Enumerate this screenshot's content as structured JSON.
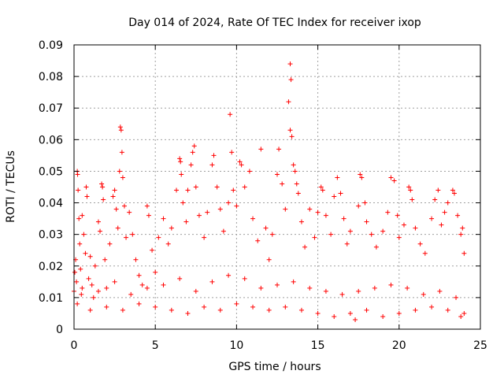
{
  "chart_data": {
    "type": "scatter",
    "title": "Day 014 of 2024, Rate Of TEC Index for receiver ixop",
    "xlabel": "GPS time / hours",
    "ylabel": "ROTI / TECUs",
    "xlim": [
      0,
      25
    ],
    "ylim": [
      0,
      0.09
    ],
    "xticks": [
      0,
      5,
      10,
      15,
      20,
      25
    ],
    "yticks": [
      0,
      0.01,
      0.02,
      0.03,
      0.04,
      0.05,
      0.06,
      0.07,
      0.08,
      0.09
    ],
    "xtick_labels": [
      "0",
      "5",
      "10",
      "15",
      "20",
      "25"
    ],
    "ytick_labels": [
      "0",
      "0.01",
      "0.02",
      "0.03",
      "0.04",
      "0.05",
      "0.06",
      "0.07",
      "0.08",
      "0.09"
    ],
    "grid": true,
    "marker": "+",
    "series_color": "#ff0000",
    "series": [
      {
        "name": "ROTI",
        "points": [
          [
            0.0,
            0.012
          ],
          [
            0.05,
            0.018
          ],
          [
            0.1,
            0.022
          ],
          [
            0.15,
            0.015
          ],
          [
            0.2,
            0.05
          ],
          [
            0.22,
            0.049
          ],
          [
            0.25,
            0.044
          ],
          [
            0.3,
            0.035
          ],
          [
            0.35,
            0.027
          ],
          [
            0.4,
            0.019
          ],
          [
            0.45,
            0.011
          ],
          [
            0.5,
            0.036
          ],
          [
            0.6,
            0.03
          ],
          [
            0.7,
            0.024
          ],
          [
            0.75,
            0.045
          ],
          [
            0.8,
            0.042
          ],
          [
            0.9,
            0.016
          ],
          [
            1.0,
            0.023
          ],
          [
            1.1,
            0.014
          ],
          [
            1.2,
            0.01
          ],
          [
            1.3,
            0.02
          ],
          [
            1.5,
            0.034
          ],
          [
            1.6,
            0.031
          ],
          [
            1.7,
            0.046
          ],
          [
            1.75,
            0.045
          ],
          [
            1.8,
            0.041
          ],
          [
            1.9,
            0.022
          ],
          [
            2.0,
            0.013
          ],
          [
            2.2,
            0.027
          ],
          [
            2.4,
            0.042
          ],
          [
            2.5,
            0.044
          ],
          [
            2.6,
            0.038
          ],
          [
            2.7,
            0.032
          ],
          [
            2.8,
            0.05
          ],
          [
            2.85,
            0.064
          ],
          [
            2.9,
            0.063
          ],
          [
            2.95,
            0.056
          ],
          [
            3.0,
            0.048
          ],
          [
            3.1,
            0.039
          ],
          [
            3.2,
            0.029
          ],
          [
            3.4,
            0.037
          ],
          [
            3.6,
            0.03
          ],
          [
            3.8,
            0.022
          ],
          [
            4.0,
            0.017
          ],
          [
            4.2,
            0.014
          ],
          [
            4.5,
            0.039
          ],
          [
            4.6,
            0.036
          ],
          [
            4.8,
            0.025
          ],
          [
            5.0,
            0.018
          ],
          [
            5.2,
            0.029
          ],
          [
            5.5,
            0.035
          ],
          [
            5.8,
            0.027
          ],
          [
            6.0,
            0.032
          ],
          [
            6.3,
            0.044
          ],
          [
            6.5,
            0.054
          ],
          [
            6.55,
            0.053
          ],
          [
            6.6,
            0.049
          ],
          [
            6.7,
            0.04
          ],
          [
            6.9,
            0.034
          ],
          [
            7.0,
            0.044
          ],
          [
            7.2,
            0.052
          ],
          [
            7.3,
            0.056
          ],
          [
            7.4,
            0.058
          ],
          [
            7.5,
            0.045
          ],
          [
            7.7,
            0.036
          ],
          [
            8.0,
            0.029
          ],
          [
            8.2,
            0.037
          ],
          [
            8.5,
            0.052
          ],
          [
            8.6,
            0.055
          ],
          [
            8.8,
            0.045
          ],
          [
            9.0,
            0.038
          ],
          [
            9.2,
            0.031
          ],
          [
            9.5,
            0.04
          ],
          [
            9.6,
            0.068
          ],
          [
            9.7,
            0.056
          ],
          [
            9.8,
            0.044
          ],
          [
            10.0,
            0.039
          ],
          [
            10.2,
            0.053
          ],
          [
            10.3,
            0.052
          ],
          [
            10.5,
            0.045
          ],
          [
            10.8,
            0.05
          ],
          [
            11.0,
            0.035
          ],
          [
            11.3,
            0.028
          ],
          [
            11.5,
            0.057
          ],
          [
            11.8,
            0.032
          ],
          [
            12.0,
            0.022
          ],
          [
            12.2,
            0.03
          ],
          [
            12.5,
            0.049
          ],
          [
            12.6,
            0.057
          ],
          [
            12.8,
            0.046
          ],
          [
            13.0,
            0.038
          ],
          [
            13.3,
            0.084
          ],
          [
            13.35,
            0.079
          ],
          [
            13.2,
            0.072
          ],
          [
            13.3,
            0.063
          ],
          [
            13.4,
            0.061
          ],
          [
            13.5,
            0.052
          ],
          [
            13.6,
            0.05
          ],
          [
            13.7,
            0.046
          ],
          [
            13.8,
            0.043
          ],
          [
            14.0,
            0.034
          ],
          [
            14.2,
            0.026
          ],
          [
            14.5,
            0.038
          ],
          [
            14.8,
            0.029
          ],
          [
            15.0,
            0.037
          ],
          [
            15.2,
            0.045
          ],
          [
            15.3,
            0.044
          ],
          [
            15.5,
            0.036
          ],
          [
            15.8,
            0.03
          ],
          [
            16.0,
            0.042
          ],
          [
            16.2,
            0.048
          ],
          [
            16.4,
            0.043
          ],
          [
            16.6,
            0.035
          ],
          [
            16.8,
            0.027
          ],
          [
            17.0,
            0.031
          ],
          [
            17.5,
            0.039
          ],
          [
            17.6,
            0.049
          ],
          [
            17.7,
            0.048
          ],
          [
            17.9,
            0.04
          ],
          [
            18.0,
            0.034
          ],
          [
            18.3,
            0.03
          ],
          [
            18.6,
            0.026
          ],
          [
            19.0,
            0.031
          ],
          [
            19.3,
            0.037
          ],
          [
            19.5,
            0.048
          ],
          [
            19.7,
            0.047
          ],
          [
            19.9,
            0.036
          ],
          [
            20.0,
            0.029
          ],
          [
            20.3,
            0.033
          ],
          [
            20.6,
            0.045
          ],
          [
            20.7,
            0.044
          ],
          [
            20.8,
            0.041
          ],
          [
            21.0,
            0.032
          ],
          [
            21.3,
            0.027
          ],
          [
            21.6,
            0.024
          ],
          [
            22.0,
            0.035
          ],
          [
            22.2,
            0.041
          ],
          [
            22.4,
            0.044
          ],
          [
            22.6,
            0.033
          ],
          [
            22.8,
            0.037
          ],
          [
            23.0,
            0.04
          ],
          [
            23.3,
            0.044
          ],
          [
            23.4,
            0.043
          ],
          [
            23.6,
            0.036
          ],
          [
            23.8,
            0.03
          ],
          [
            23.9,
            0.032
          ],
          [
            24.0,
            0.024
          ],
          [
            0.2,
            0.008
          ],
          [
            1.0,
            0.006
          ],
          [
            2.0,
            0.007
          ],
          [
            3.0,
            0.006
          ],
          [
            4.0,
            0.008
          ],
          [
            5.0,
            0.007
          ],
          [
            6.0,
            0.006
          ],
          [
            7.0,
            0.005
          ],
          [
            8.0,
            0.007
          ],
          [
            9.0,
            0.006
          ],
          [
            10.0,
            0.008
          ],
          [
            11.0,
            0.007
          ],
          [
            12.0,
            0.006
          ],
          [
            13.0,
            0.007
          ],
          [
            14.0,
            0.006
          ],
          [
            15.0,
            0.005
          ],
          [
            16.0,
            0.004
          ],
          [
            17.0,
            0.005
          ],
          [
            17.3,
            0.003
          ],
          [
            18.0,
            0.006
          ],
          [
            19.0,
            0.004
          ],
          [
            20.0,
            0.005
          ],
          [
            21.0,
            0.006
          ],
          [
            22.0,
            0.007
          ],
          [
            23.0,
            0.006
          ],
          [
            23.8,
            0.004
          ],
          [
            24.0,
            0.005
          ],
          [
            0.5,
            0.013
          ],
          [
            1.5,
            0.012
          ],
          [
            2.5,
            0.015
          ],
          [
            3.5,
            0.011
          ],
          [
            4.5,
            0.013
          ],
          [
            5.5,
            0.014
          ],
          [
            6.5,
            0.016
          ],
          [
            7.5,
            0.012
          ],
          [
            8.5,
            0.015
          ],
          [
            9.5,
            0.017
          ],
          [
            10.5,
            0.016
          ],
          [
            11.5,
            0.013
          ],
          [
            12.5,
            0.014
          ],
          [
            13.5,
            0.015
          ],
          [
            14.5,
            0.013
          ],
          [
            15.5,
            0.012
          ],
          [
            16.5,
            0.011
          ],
          [
            17.5,
            0.012
          ],
          [
            18.5,
            0.013
          ],
          [
            19.5,
            0.014
          ],
          [
            20.5,
            0.013
          ],
          [
            21.5,
            0.011
          ],
          [
            22.5,
            0.012
          ],
          [
            23.5,
            0.01
          ]
        ]
      }
    ]
  }
}
